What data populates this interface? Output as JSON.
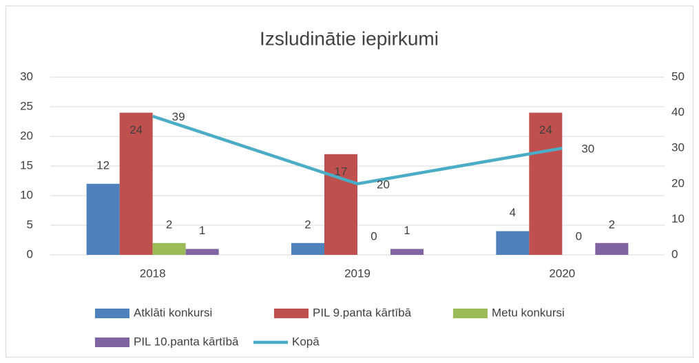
{
  "chart_data": {
    "type": "bar",
    "title": "Izsludinātie iepirkumi",
    "categories": [
      "2018",
      "2019",
      "2020"
    ],
    "series": [
      {
        "name": "Atklāti konkursi",
        "color": "#4f81bd",
        "values": [
          12,
          2,
          4
        ]
      },
      {
        "name": "PIL 9.panta kārtībā",
        "color": "#c0504d",
        "values": [
          24,
          17,
          24
        ]
      },
      {
        "name": "Metu konkursi",
        "color": "#9bbb59",
        "values": [
          2,
          0,
          0
        ]
      },
      {
        "name": "PIL 10.panta kārtībā",
        "color": "#8064a2",
        "values": [
          1,
          1,
          2
        ]
      },
      {
        "name": "Kopā",
        "color": "#4bacc6",
        "type": "line",
        "axis": "y2",
        "values": [
          39,
          20,
          30
        ]
      }
    ],
    "ylim": [
      0,
      30
    ],
    "yticks": [
      0,
      5,
      10,
      15,
      20,
      25,
      30
    ],
    "y2lim": [
      0,
      50
    ],
    "y2ticks": [
      0,
      10,
      20,
      30,
      40,
      50
    ],
    "grid": true,
    "legend": "bottom"
  }
}
